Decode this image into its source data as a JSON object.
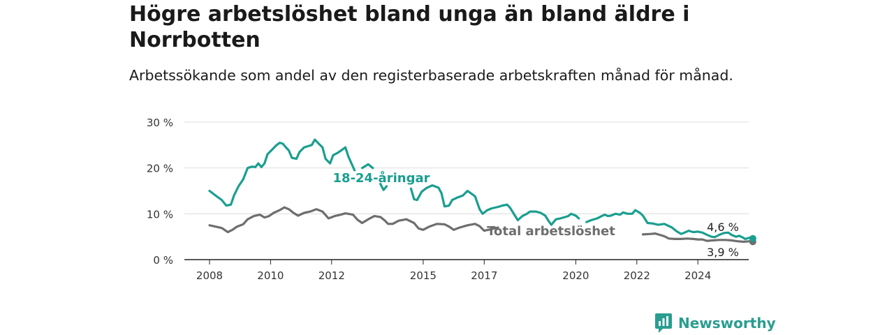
{
  "title": "Högre arbetslöshet bland unga än bland äldre i Norrbotten",
  "subtitle": "Arbetssökande som andel av den registerbaserade arbetskraften månad för månad.",
  "brand": "Newsworthy",
  "colors": {
    "youth": "#1a9e8f",
    "total": "#6e6e6e"
  },
  "chart_data": {
    "type": "line",
    "ylim": [
      0,
      30
    ],
    "y_ticks": [
      0,
      10,
      20,
      30
    ],
    "y_tick_labels": [
      "0 %",
      "10 %",
      "20 %",
      "30 %"
    ],
    "x_ticks": [
      2008,
      2010,
      2012,
      2015,
      2017,
      2020,
      2022,
      2024
    ],
    "x_tick_labels": [
      "2008",
      "2010",
      "2012",
      "2015",
      "2017",
      "2020",
      "2022",
      "2024"
    ],
    "grid": true,
    "series": [
      {
        "name": "18-24-åringar",
        "color": "#1a9e8f",
        "end_label": "4,6 %",
        "points": [
          [
            2008.0,
            15.0
          ],
          [
            2008.2,
            14.0
          ],
          [
            2008.4,
            13.0
          ],
          [
            2008.55,
            11.8
          ],
          [
            2008.7,
            12.0
          ],
          [
            2008.8,
            14.0
          ],
          [
            2008.95,
            16.0
          ],
          [
            2009.1,
            17.5
          ],
          [
            2009.25,
            20.0
          ],
          [
            2009.4,
            20.3
          ],
          [
            2009.5,
            20.2
          ],
          [
            2009.6,
            21.0
          ],
          [
            2009.7,
            20.2
          ],
          [
            2009.8,
            21.0
          ],
          [
            2009.9,
            23.0
          ],
          [
            2010.05,
            24.0
          ],
          [
            2010.2,
            25.0
          ],
          [
            2010.3,
            25.5
          ],
          [
            2010.4,
            25.3
          ],
          [
            2010.5,
            24.5
          ],
          [
            2010.6,
            23.8
          ],
          [
            2010.7,
            22.2
          ],
          [
            2010.85,
            22.0
          ],
          [
            2010.95,
            23.5
          ],
          [
            2011.1,
            24.5
          ],
          [
            2011.25,
            24.8
          ],
          [
            2011.35,
            25.0
          ],
          [
            2011.45,
            26.2
          ],
          [
            2011.55,
            25.5
          ],
          [
            2011.7,
            24.5
          ],
          [
            2011.8,
            22.0
          ],
          [
            2011.95,
            21.0
          ],
          [
            2012.05,
            22.8
          ],
          [
            2012.2,
            23.3
          ],
          [
            2012.35,
            24.0
          ],
          [
            2012.45,
            24.5
          ],
          [
            2012.55,
            22.5
          ],
          [
            2012.75,
            19.5
          ],
          null,
          [
            2013.0,
            20.0
          ],
          [
            2013.2,
            20.8
          ],
          [
            2013.35,
            20.0
          ],
          null,
          [
            2013.6,
            16.5
          ],
          [
            2013.7,
            15.2
          ],
          [
            2013.8,
            16.0
          ],
          null,
          [
            2014.6,
            15.5
          ],
          [
            2014.7,
            13.2
          ],
          [
            2014.8,
            13.0
          ],
          [
            2014.95,
            14.8
          ],
          [
            2015.1,
            15.6
          ],
          [
            2015.3,
            16.2
          ],
          [
            2015.5,
            15.7
          ],
          [
            2015.6,
            14.5
          ],
          [
            2015.7,
            11.6
          ],
          [
            2015.85,
            11.8
          ],
          [
            2015.95,
            13.0
          ],
          [
            2016.1,
            13.5
          ],
          [
            2016.3,
            14.0
          ],
          [
            2016.45,
            15.0
          ],
          [
            2016.6,
            14.3
          ],
          [
            2016.7,
            13.8
          ],
          [
            2016.85,
            11.0
          ],
          [
            2016.95,
            10.0
          ],
          [
            2017.1,
            10.8
          ],
          [
            2017.25,
            11.2
          ],
          [
            2017.45,
            11.5
          ],
          [
            2017.6,
            11.8
          ],
          [
            2017.75,
            12.0
          ],
          [
            2017.85,
            11.3
          ],
          [
            2017.95,
            10.2
          ],
          [
            2018.1,
            8.6
          ],
          [
            2018.25,
            9.5
          ],
          [
            2018.4,
            10.0
          ],
          [
            2018.5,
            10.5
          ],
          [
            2018.7,
            10.5
          ],
          [
            2018.85,
            10.2
          ],
          [
            2019.0,
            9.6
          ],
          [
            2019.1,
            8.5
          ],
          [
            2019.2,
            7.6
          ],
          [
            2019.35,
            8.8
          ],
          [
            2019.5,
            9.0
          ],
          [
            2019.6,
            9.2
          ],
          [
            2019.75,
            9.5
          ],
          [
            2019.85,
            10.0
          ],
          [
            2020.0,
            9.6
          ],
          [
            2020.1,
            9.0
          ],
          null,
          [
            2020.35,
            8.2
          ],
          [
            2020.5,
            8.6
          ],
          [
            2020.7,
            9.0
          ],
          [
            2020.85,
            9.5
          ],
          [
            2020.95,
            9.8
          ],
          [
            2021.05,
            9.5
          ],
          [
            2021.15,
            9.6
          ],
          [
            2021.3,
            10.0
          ],
          [
            2021.45,
            9.8
          ],
          [
            2021.55,
            10.3
          ],
          [
            2021.7,
            10.0
          ],
          [
            2021.85,
            10.0
          ],
          [
            2021.95,
            10.8
          ],
          [
            2022.1,
            10.2
          ],
          [
            2022.2,
            9.6
          ],
          [
            2022.35,
            8.0
          ],
          [
            2022.5,
            7.9
          ],
          [
            2022.7,
            7.6
          ],
          [
            2022.9,
            7.8
          ],
          [
            2023.0,
            7.5
          ],
          [
            2023.15,
            7.0
          ],
          [
            2023.3,
            6.2
          ],
          [
            2023.45,
            5.6
          ],
          [
            2023.6,
            6.0
          ],
          [
            2023.7,
            6.3
          ],
          [
            2023.85,
            6.0
          ],
          [
            2024.0,
            6.1
          ],
          [
            2024.15,
            5.9
          ],
          [
            2024.3,
            5.4
          ],
          [
            2024.45,
            5.0
          ],
          [
            2024.55,
            4.9
          ],
          [
            2024.7,
            5.4
          ],
          [
            2024.85,
            5.8
          ],
          [
            2025.0,
            5.9
          ],
          [
            2025.1,
            5.4
          ],
          [
            2025.25,
            5.0
          ],
          [
            2025.35,
            5.2
          ],
          [
            2025.45,
            4.9
          ],
          [
            2025.55,
            4.5
          ],
          [
            2025.7,
            4.8
          ],
          [
            2025.8,
            4.6
          ]
        ]
      },
      {
        "name": "Total arbetslöshet",
        "color": "#6e6e6e",
        "end_label": "3,9 %",
        "points": [
          [
            2008.0,
            7.5
          ],
          [
            2008.2,
            7.2
          ],
          [
            2008.4,
            6.9
          ],
          [
            2008.6,
            6.0
          ],
          [
            2008.75,
            6.5
          ],
          [
            2008.9,
            7.2
          ],
          [
            2009.1,
            7.7
          ],
          [
            2009.25,
            8.8
          ],
          [
            2009.45,
            9.5
          ],
          [
            2009.65,
            9.8
          ],
          [
            2009.8,
            9.2
          ],
          [
            2009.95,
            9.5
          ],
          [
            2010.1,
            10.2
          ],
          [
            2010.3,
            10.8
          ],
          [
            2010.45,
            11.4
          ],
          [
            2010.6,
            11.0
          ],
          [
            2010.75,
            10.2
          ],
          [
            2010.9,
            9.6
          ],
          [
            2011.1,
            10.2
          ],
          [
            2011.3,
            10.5
          ],
          [
            2011.5,
            11.0
          ],
          [
            2011.7,
            10.5
          ],
          [
            2011.9,
            9.0
          ],
          [
            2012.1,
            9.5
          ],
          [
            2012.3,
            9.8
          ],
          [
            2012.45,
            10.1
          ],
          [
            2012.7,
            9.8
          ],
          [
            2012.85,
            8.7
          ],
          [
            2013.0,
            8.0
          ],
          [
            2013.2,
            8.8
          ],
          [
            2013.4,
            9.5
          ],
          [
            2013.6,
            9.3
          ],
          [
            2013.75,
            8.5
          ],
          [
            2013.85,
            7.8
          ],
          [
            2014.0,
            7.8
          ],
          [
            2014.2,
            8.5
          ],
          [
            2014.45,
            8.8
          ],
          [
            2014.7,
            8.0
          ],
          [
            2014.85,
            6.8
          ],
          [
            2015.0,
            6.5
          ],
          [
            2015.2,
            7.2
          ],
          [
            2015.45,
            7.8
          ],
          [
            2015.7,
            7.7
          ],
          [
            2015.85,
            7.2
          ],
          [
            2016.0,
            6.5
          ],
          [
            2016.2,
            7.0
          ],
          [
            2016.45,
            7.5
          ],
          [
            2016.7,
            7.8
          ],
          [
            2016.85,
            7.3
          ],
          [
            2017.0,
            6.3
          ],
          [
            2017.2,
            6.6
          ],
          [
            2017.45,
            7.0
          ],
          null,
          [
            2022.2,
            5.5
          ],
          [
            2022.45,
            5.6
          ],
          [
            2022.6,
            5.7
          ],
          [
            2022.75,
            5.4
          ],
          [
            2022.9,
            5.1
          ],
          [
            2023.05,
            4.6
          ],
          [
            2023.25,
            4.5
          ],
          [
            2023.45,
            4.5
          ],
          [
            2023.65,
            4.6
          ],
          [
            2023.85,
            4.5
          ],
          [
            2024.0,
            4.4
          ],
          [
            2024.15,
            4.4
          ],
          [
            2024.3,
            4.1
          ],
          [
            2024.5,
            4.2
          ],
          [
            2024.7,
            4.3
          ],
          [
            2024.9,
            4.3
          ],
          [
            2025.1,
            4.2
          ],
          [
            2025.3,
            4.0
          ],
          [
            2025.5,
            3.9
          ],
          [
            2025.7,
            4.0
          ],
          [
            2025.8,
            3.9
          ]
        ]
      }
    ]
  }
}
